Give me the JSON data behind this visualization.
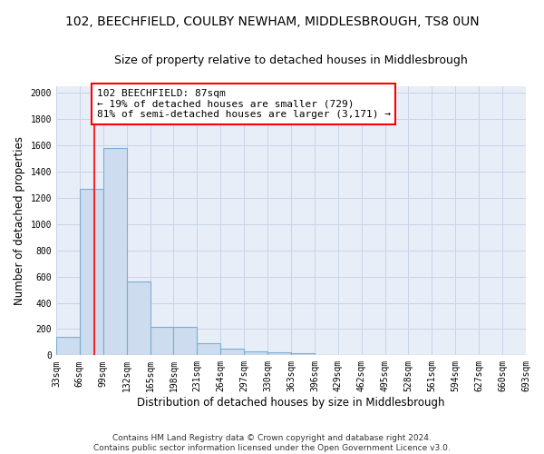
{
  "title": "102, BEECHFIELD, COULBY NEWHAM, MIDDLESBROUGH, TS8 0UN",
  "subtitle": "Size of property relative to detached houses in Middlesbrough",
  "xlabel": "Distribution of detached houses by size in Middlesbrough",
  "ylabel": "Number of detached properties",
  "footer": "Contains HM Land Registry data © Crown copyright and database right 2024.\nContains public sector information licensed under the Open Government Licence v3.0.",
  "bin_edges": [
    33,
    66,
    99,
    132,
    165,
    198,
    231,
    264,
    297,
    330,
    363,
    396,
    429,
    462,
    495,
    528,
    561,
    594,
    627,
    660,
    693
  ],
  "bar_heights": [
    140,
    1270,
    1580,
    560,
    220,
    220,
    95,
    50,
    30,
    20,
    15,
    0,
    0,
    0,
    0,
    0,
    0,
    0,
    0,
    0
  ],
  "bar_color": "#cddcee",
  "bar_edge_color": "#7aaed4",
  "property_size": 87,
  "annotation_text": "102 BEECHFIELD: 87sqm\n← 19% of detached houses are smaller (729)\n81% of semi-detached houses are larger (3,171) →",
  "annotation_box_color": "white",
  "annotation_box_edge_color": "red",
  "vline_color": "red",
  "ylim": [
    0,
    2050
  ],
  "yticks": [
    0,
    200,
    400,
    600,
    800,
    1000,
    1200,
    1400,
    1600,
    1800,
    2000
  ],
  "bg_color": "#e8eef8",
  "grid_color": "#c8d4e8",
  "title_fontsize": 10,
  "subtitle_fontsize": 9,
  "axis_label_fontsize": 8.5,
  "tick_fontsize": 7,
  "footer_fontsize": 6.5,
  "annotation_fontsize": 8
}
